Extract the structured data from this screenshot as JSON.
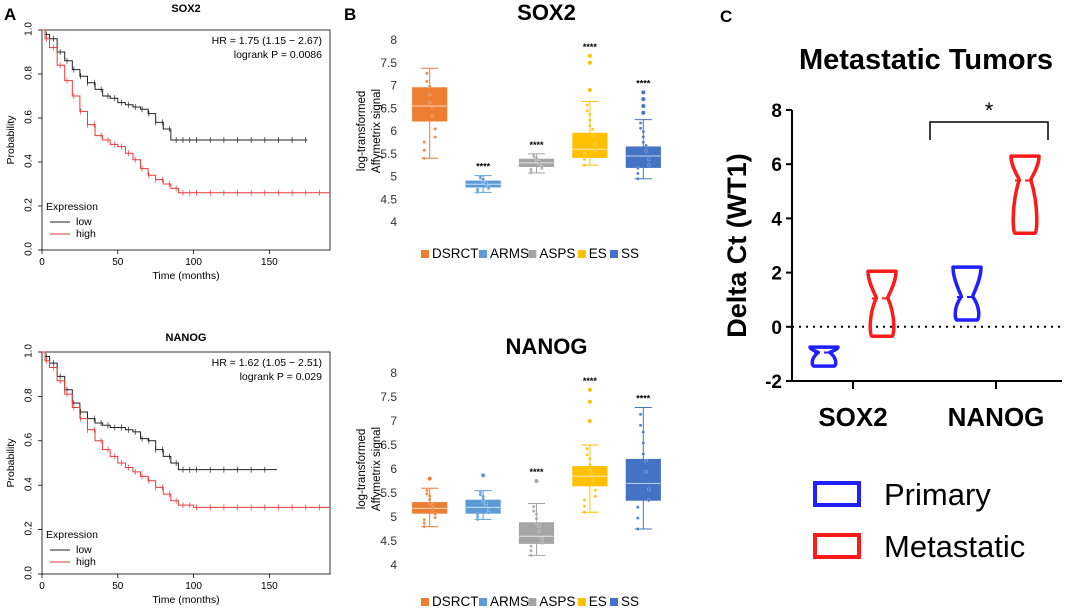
{
  "panels": {
    "a": "A",
    "b": "B",
    "c": "C"
  },
  "colors": {
    "low": "#222222",
    "high": "#e83a3a",
    "DSRCT": "#ed7d31",
    "ARMS": "#5b9bd5",
    "ASPS": "#a5a5a5",
    "ES": "#ffc000",
    "SS": "#4472c4",
    "primary": "#1f1fff",
    "metastatic": "#ff1a1a"
  },
  "chart_data": [
    {
      "id": "km_sox2",
      "type": "line",
      "title": "SOX2",
      "xlabel": "Time (months)",
      "ylabel": "Probability",
      "xlim": [
        0,
        190
      ],
      "ylim": [
        0,
        1
      ],
      "xticks": [
        "0",
        "50",
        "100",
        "150"
      ],
      "yticks": [
        "0.0",
        "0.2",
        "0.4",
        "0.6",
        "0.8",
        "1.0"
      ],
      "stats": [
        "HR = 1.75 (1.15 − 2.67)",
        "logrank P = 0.0086"
      ],
      "legend_title": "Expression",
      "series": [
        {
          "name": "low",
          "x": [
            0,
            2,
            5,
            10,
            15,
            20,
            25,
            30,
            35,
            40,
            45,
            50,
            55,
            60,
            65,
            70,
            75,
            80,
            85,
            90,
            100,
            110,
            120,
            130,
            140,
            150,
            160,
            165,
            175
          ],
          "y": [
            1.0,
            0.98,
            0.96,
            0.9,
            0.86,
            0.82,
            0.79,
            0.76,
            0.73,
            0.7,
            0.69,
            0.67,
            0.66,
            0.65,
            0.64,
            0.62,
            0.58,
            0.55,
            0.5,
            0.5,
            0.5,
            0.5,
            0.5,
            0.5,
            0.5,
            0.5,
            0.5,
            0.5,
            0.5
          ]
        },
        {
          "name": "high",
          "x": [
            0,
            2,
            5,
            10,
            15,
            20,
            25,
            30,
            35,
            40,
            45,
            50,
            55,
            60,
            65,
            70,
            75,
            80,
            85,
            90,
            100,
            120,
            140,
            160,
            175,
            190
          ],
          "y": [
            1.0,
            0.96,
            0.92,
            0.84,
            0.77,
            0.7,
            0.63,
            0.57,
            0.52,
            0.5,
            0.48,
            0.47,
            0.44,
            0.41,
            0.37,
            0.34,
            0.32,
            0.3,
            0.28,
            0.26,
            0.26,
            0.26,
            0.26,
            0.26,
            0.26,
            0.26
          ]
        }
      ]
    },
    {
      "id": "km_nanog",
      "type": "line",
      "title": "NANOG",
      "xlabel": "Time (months)",
      "ylabel": "Probability",
      "xlim": [
        0,
        190
      ],
      "ylim": [
        0,
        1
      ],
      "xticks": [
        "0",
        "50",
        "100",
        "150"
      ],
      "yticks": [
        "0.0",
        "0.2",
        "0.4",
        "0.6",
        "0.8",
        "1.0"
      ],
      "stats": [
        "HR = 1.62 (1.05 − 2.51)",
        "logrank P = 0.029"
      ],
      "legend_title": "Expression",
      "series": [
        {
          "name": "low",
          "x": [
            0,
            2,
            5,
            10,
            15,
            20,
            25,
            30,
            35,
            40,
            45,
            50,
            55,
            60,
            65,
            70,
            75,
            80,
            85,
            90,
            100,
            120,
            140,
            155
          ],
          "y": [
            1.0,
            0.98,
            0.95,
            0.89,
            0.83,
            0.77,
            0.73,
            0.7,
            0.68,
            0.67,
            0.66,
            0.66,
            0.65,
            0.64,
            0.61,
            0.6,
            0.56,
            0.53,
            0.5,
            0.47,
            0.47,
            0.47,
            0.47,
            0.47
          ]
        },
        {
          "name": "high",
          "x": [
            0,
            2,
            5,
            10,
            15,
            20,
            25,
            30,
            35,
            40,
            45,
            50,
            55,
            60,
            65,
            70,
            75,
            80,
            85,
            90,
            100,
            120,
            140,
            160,
            175,
            190
          ],
          "y": [
            1.0,
            0.96,
            0.93,
            0.87,
            0.81,
            0.75,
            0.7,
            0.65,
            0.6,
            0.56,
            0.53,
            0.5,
            0.48,
            0.46,
            0.44,
            0.42,
            0.39,
            0.36,
            0.33,
            0.31,
            0.3,
            0.3,
            0.3,
            0.3,
            0.3,
            0.3
          ]
        }
      ]
    },
    {
      "id": "box_sox2",
      "type": "box",
      "title": "SOX2",
      "ylabel_lines": [
        "log-transformed",
        "Affymetrix signal"
      ],
      "ylim": [
        4,
        8
      ],
      "yticks": [
        "4",
        "4.5",
        "5",
        "5.5",
        "6",
        "6.5",
        "7",
        "7.5",
        "8"
      ],
      "categories": [
        "DSRCT",
        "ARMS",
        "ASPS",
        "ES",
        "SS"
      ],
      "boxes": [
        {
          "name": "DSRCT",
          "min": 5.4,
          "q1": 6.22,
          "median": 6.55,
          "q3": 6.95,
          "max": 7.38,
          "sig": ""
        },
        {
          "name": "ARMS",
          "min": 4.65,
          "q1": 4.77,
          "median": 4.83,
          "q3": 4.9,
          "max": 5.02,
          "sig": "****"
        },
        {
          "name": "ASPS",
          "min": 5.08,
          "q1": 5.22,
          "median": 5.3,
          "q3": 5.38,
          "max": 5.5,
          "sig": "****"
        },
        {
          "name": "ES",
          "min": 5.25,
          "q1": 5.42,
          "median": 5.6,
          "q3": 5.95,
          "max": 6.65,
          "sig": "****",
          "outliers": [
            7.5,
            7.65,
            6.9
          ]
        },
        {
          "name": "SS",
          "min": 4.95,
          "q1": 5.2,
          "median": 5.45,
          "q3": 5.65,
          "max": 6.25,
          "sig": "****",
          "outliers": [
            6.85,
            6.7,
            6.55,
            6.4
          ]
        }
      ]
    },
    {
      "id": "box_nanog",
      "type": "box",
      "title": "NANOG",
      "ylabel_lines": [
        "log-transformed",
        "Affymetrix signal"
      ],
      "ylim": [
        4,
        8
      ],
      "yticks": [
        "4",
        "4.5",
        "5",
        "5.5",
        "6",
        "6.5",
        "7",
        "7.5",
        "8"
      ],
      "categories": [
        "DSRCT",
        "ARMS",
        "ASPS",
        "ES",
        "SS"
      ],
      "boxes": [
        {
          "name": "DSRCT",
          "min": 4.8,
          "q1": 5.08,
          "median": 5.18,
          "q3": 5.3,
          "max": 5.6,
          "sig": "",
          "outliers": [
            5.8
          ]
        },
        {
          "name": "ARMS",
          "min": 4.95,
          "q1": 5.08,
          "median": 5.2,
          "q3": 5.35,
          "max": 5.55,
          "sig": "",
          "outliers": [
            5.87
          ]
        },
        {
          "name": "ASPS",
          "min": 4.2,
          "q1": 4.45,
          "median": 4.6,
          "q3": 4.88,
          "max": 5.28,
          "sig": "****",
          "outliers": [
            5.75
          ]
        },
        {
          "name": "ES",
          "min": 5.1,
          "q1": 5.65,
          "median": 5.85,
          "q3": 6.05,
          "max": 6.5,
          "sig": "****",
          "outliers": [
            7.65,
            7.4,
            7.0
          ]
        },
        {
          "name": "SS",
          "min": 4.75,
          "q1": 5.35,
          "median": 5.7,
          "q3": 6.2,
          "max": 7.28,
          "sig": "****"
        }
      ]
    },
    {
      "id": "violin_metastatic",
      "type": "violin",
      "title": "Metastatic Tumors",
      "ylabel": "Delta Ct (WT1)",
      "ylim": [
        -2,
        8
      ],
      "yticks": [
        "-2",
        "0",
        "2",
        "4",
        "6",
        "8"
      ],
      "categories": [
        "SOX2",
        "NANOG"
      ],
      "series": [
        {
          "name": "Primary",
          "groups": [
            {
              "category": "SOX2",
              "min": -1.45,
              "median": -0.95,
              "max": -0.75
            },
            {
              "category": "NANOG",
              "min": 0.25,
              "median": 1.1,
              "max": 2.2
            }
          ]
        },
        {
          "name": "Metastatic",
          "groups": [
            {
              "category": "SOX2",
              "min": -0.35,
              "median": 1.05,
              "max": 2.05
            },
            {
              "category": "NANOG",
              "min": 3.45,
              "median": 5.4,
              "max": 6.3
            }
          ]
        }
      ],
      "significance": "*",
      "legend": [
        "Primary",
        "Metastatic"
      ]
    }
  ]
}
